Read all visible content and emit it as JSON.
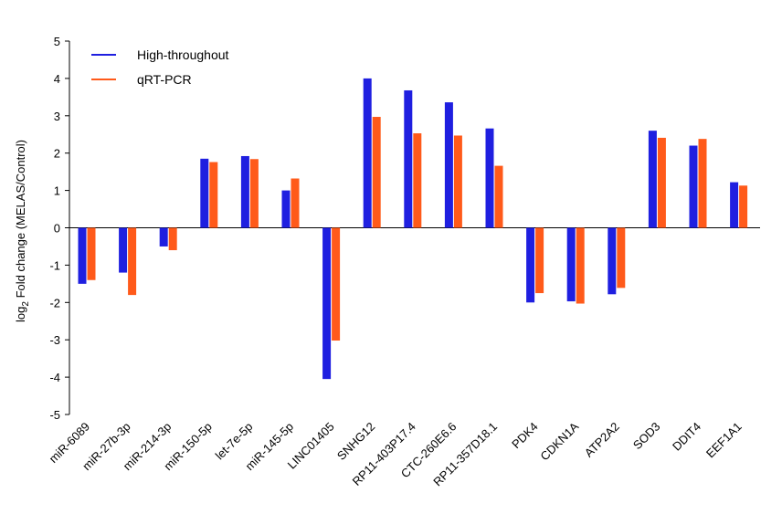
{
  "chart_data": {
    "type": "bar",
    "categories": [
      "miR-6089",
      "miR-27b-3p",
      "miR-214-3p",
      "miR-150-5p",
      "let-7e-5p",
      "miR-145-5p",
      "LINC01405",
      "SNHG12",
      "RP11-403P17.4",
      "CTC-260E6.6",
      "RP11-357D18.1",
      "PDK4",
      "CDKN1A",
      "ATP2A2",
      "SOD3",
      "DDIT4",
      "EEF1A1"
    ],
    "series": [
      {
        "name": "High-throughout",
        "color": "#1f1fe0",
        "values": [
          -1.5,
          -1.2,
          -0.5,
          1.85,
          1.92,
          1.0,
          -4.05,
          4.0,
          3.68,
          3.36,
          2.66,
          -2.0,
          -1.97,
          -1.78,
          2.6,
          2.2,
          1.22
        ]
      },
      {
        "name": "qRT-PCR",
        "color": "#ff5a1a",
        "values": [
          -1.4,
          -1.8,
          -0.6,
          1.76,
          1.84,
          1.32,
          -3.02,
          2.97,
          2.53,
          2.47,
          1.66,
          -1.75,
          -2.03,
          -1.61,
          2.41,
          2.38,
          1.13
        ]
      }
    ],
    "ylabel_main": "log",
    "ylabel_sub": "2",
    "ylabel_rest": " Fold change (MELAS/Control)",
    "ylim": [
      -5,
      5
    ],
    "yticks": [
      "5",
      "4",
      "3",
      "2",
      "1",
      "0",
      "-1",
      "-2",
      "-3",
      "-4",
      "-5"
    ],
    "legend_position": "top-left",
    "grid": false
  }
}
